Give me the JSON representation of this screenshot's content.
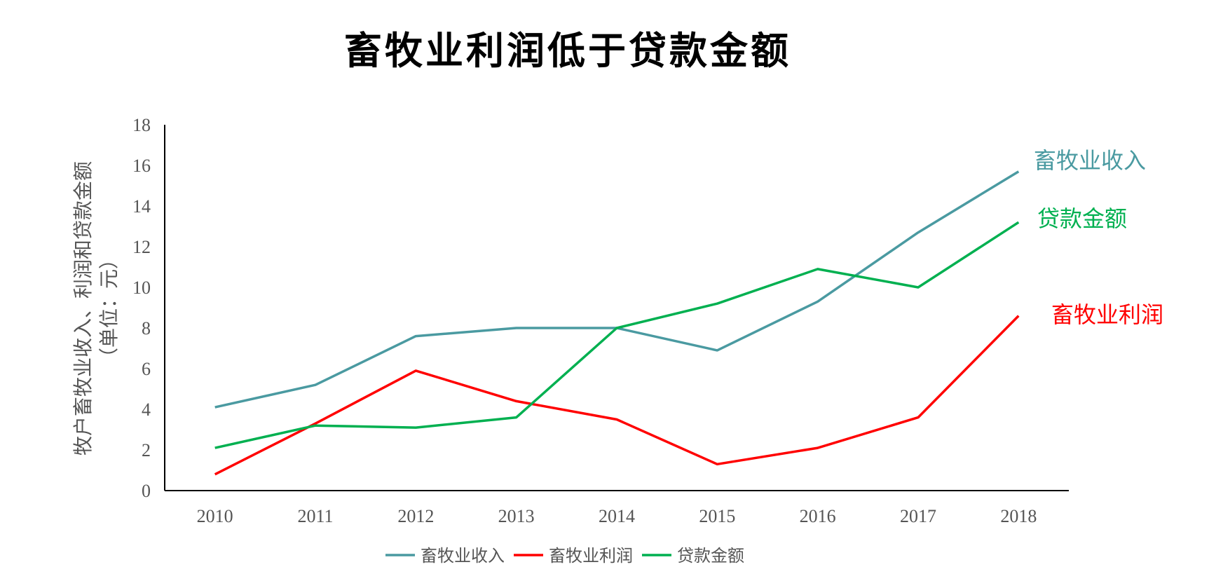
{
  "chart_data": {
    "type": "line",
    "title": "畜牧业利润低于贷款金额",
    "ylabel_line1": "牧户畜牧业收入、利润和贷款金额",
    "ylabel_line2": "（单位：元）",
    "xlabel": "",
    "ylim": [
      0,
      18
    ],
    "yticks": [
      0,
      2,
      4,
      6,
      8,
      10,
      12,
      14,
      16,
      18
    ],
    "categories": [
      "2010",
      "2011",
      "2012",
      "2013",
      "2014",
      "2015",
      "2016",
      "2017",
      "2018"
    ],
    "grid": false,
    "legend_position": "bottom",
    "series": [
      {
        "name": "畜牧业收入",
        "color": "#4a9aa1",
        "values": [
          4.1,
          5.2,
          7.6,
          8.0,
          8.0,
          6.9,
          9.3,
          12.7,
          15.7
        ]
      },
      {
        "name": "畜牧业利润",
        "color": "#ff0000",
        "values": [
          0.8,
          3.3,
          5.9,
          4.4,
          3.5,
          1.3,
          2.1,
          3.6,
          8.6
        ]
      },
      {
        "name": "贷款金额",
        "color": "#00b050",
        "values": [
          2.1,
          3.2,
          3.1,
          3.6,
          8.0,
          9.2,
          10.9,
          10.0,
          13.2
        ]
      }
    ],
    "end_labels": [
      "畜牧业收入",
      "贷款金额",
      "畜牧业利润"
    ]
  }
}
